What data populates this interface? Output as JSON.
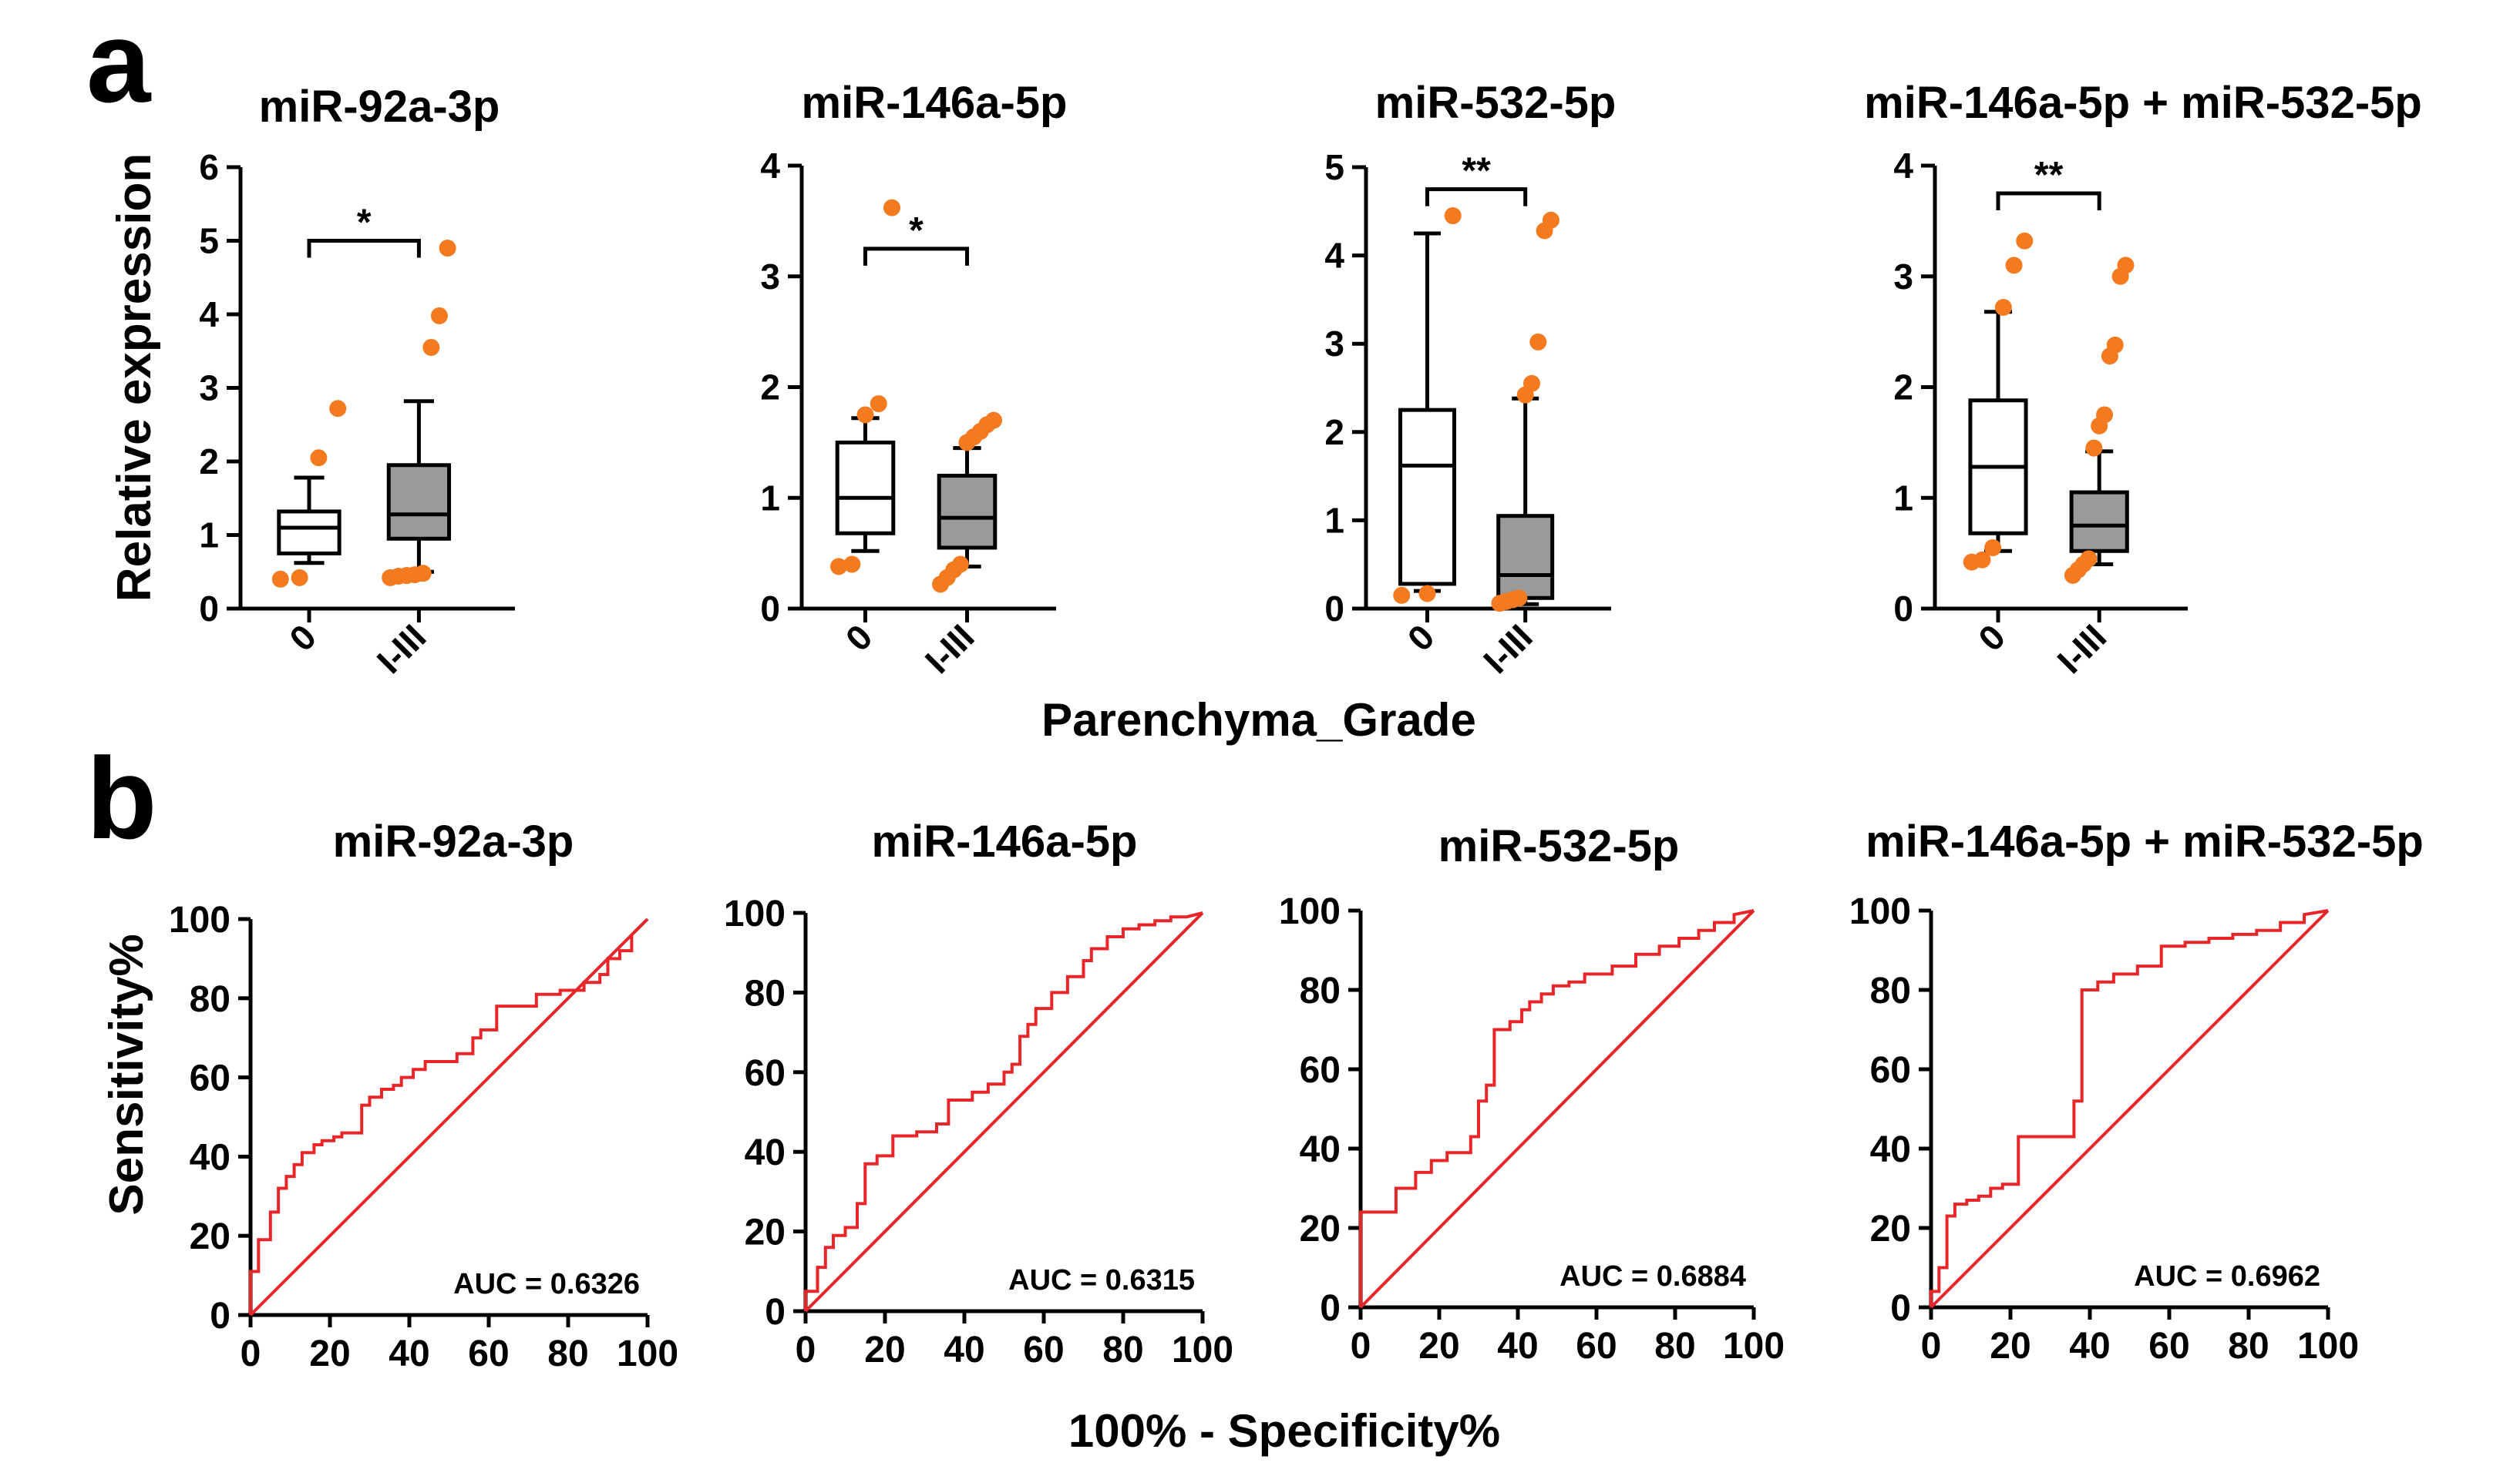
{
  "panel_labels": {
    "a": "a",
    "b": "b"
  },
  "colors": {
    "dot": "#f47a20",
    "box_group2": "#9a9a9a",
    "roc": "#e8262a",
    "diag": "#e8262a",
    "axis": "#000000"
  },
  "chart_data": [
    {
      "type": "box",
      "panel": "a",
      "title": "miR-92a-3p",
      "ylabel": "Relative expression",
      "xlabel": "Parenchyma_Grade",
      "ylim": [
        0,
        6
      ],
      "yticks": [
        "0",
        "1",
        "2",
        "3",
        "4",
        "5",
        "6"
      ],
      "categories": [
        "0",
        "I-III"
      ],
      "boxes": [
        {
          "q1": 0.75,
          "median": 1.1,
          "q3": 1.32,
          "whisker_low": 0.62,
          "whisker_high": 1.78,
          "outliers": [
            0.4,
            0.42,
            2.05,
            2.72
          ]
        },
        {
          "q1": 0.95,
          "median": 1.28,
          "q3": 1.95,
          "whisker_low": 0.5,
          "whisker_high": 2.82,
          "outliers": [
            0.42,
            0.44,
            0.45,
            0.46,
            0.48,
            3.55,
            3.98,
            4.9
          ]
        }
      ],
      "significance": {
        "label": "*",
        "y": 5.0
      }
    },
    {
      "type": "box",
      "panel": "a",
      "title": "miR-146a-5p",
      "ylim": [
        0,
        4
      ],
      "yticks": [
        "0",
        "1",
        "2",
        "3",
        "4"
      ],
      "categories": [
        "0",
        "I-III"
      ],
      "boxes": [
        {
          "q1": 0.68,
          "median": 1.0,
          "q3": 1.5,
          "whisker_low": 0.52,
          "whisker_high": 1.72,
          "outliers": [
            0.38,
            0.4,
            1.75,
            1.85,
            3.62
          ]
        },
        {
          "q1": 0.55,
          "median": 0.82,
          "q3": 1.2,
          "whisker_low": 0.38,
          "whisker_high": 1.45,
          "outliers": [
            0.22,
            0.28,
            0.35,
            0.4,
            1.5,
            1.55,
            1.6,
            1.66,
            1.7
          ]
        }
      ],
      "significance": {
        "label": "*",
        "y": 3.25
      }
    },
    {
      "type": "box",
      "panel": "a",
      "title": "miR-532-5p",
      "ylim": [
        0,
        5
      ],
      "yticks": [
        "0",
        "1",
        "2",
        "3",
        "4",
        "5"
      ],
      "categories": [
        "0",
        "I-III"
      ],
      "boxes": [
        {
          "q1": 0.28,
          "median": 1.62,
          "q3": 2.25,
          "whisker_low": 0.2,
          "whisker_high": 4.25,
          "outliers": [
            0.15,
            0.17,
            4.45
          ]
        },
        {
          "q1": 0.12,
          "median": 0.38,
          "q3": 1.05,
          "whisker_low": 0.05,
          "whisker_high": 2.38,
          "outliers": [
            0.06,
            0.08,
            0.1,
            0.12,
            2.42,
            2.55,
            3.02,
            4.28,
            4.4
          ]
        }
      ],
      "significance": {
        "label": "**",
        "y": 4.75
      }
    },
    {
      "type": "box",
      "panel": "a",
      "title": "miR-146a-5p + miR-532-5p",
      "ylim": [
        0,
        4
      ],
      "yticks": [
        "0",
        "1",
        "2",
        "3",
        "4"
      ],
      "categories": [
        "0",
        "I-III"
      ],
      "boxes": [
        {
          "q1": 0.68,
          "median": 1.28,
          "q3": 1.88,
          "whisker_low": 0.52,
          "whisker_high": 2.68,
          "outliers": [
            0.42,
            0.44,
            0.55,
            2.72,
            3.1,
            3.32
          ]
        },
        {
          "q1": 0.52,
          "median": 0.75,
          "q3": 1.05,
          "whisker_low": 0.4,
          "whisker_high": 1.42,
          "outliers": [
            0.3,
            0.35,
            0.4,
            0.45,
            1.45,
            1.65,
            1.75,
            2.28,
            2.38,
            3.0,
            3.1
          ]
        }
      ],
      "significance": {
        "label": "**",
        "y": 3.75
      }
    },
    {
      "type": "line",
      "panel": "b",
      "title": "miR-92a-3p",
      "ylabel": "Sensitivity%",
      "xlabel": "100% - Specificity%",
      "xlim": [
        0,
        100
      ],
      "ylim": [
        0,
        100
      ],
      "xticks": [
        "0",
        "20",
        "40",
        "60",
        "80",
        "100"
      ],
      "yticks": [
        "0",
        "20",
        "40",
        "60",
        "80",
        "100"
      ],
      "auc_label": "AUC = 0.6326",
      "x": [
        0,
        0,
        2,
        2,
        5,
        5,
        7,
        7,
        9,
        9,
        11,
        11,
        13,
        13,
        16,
        16,
        18,
        18,
        21,
        21,
        23,
        23,
        28,
        28,
        30,
        30,
        33,
        33,
        36,
        36,
        38,
        38,
        41,
        41,
        44,
        44,
        52,
        52,
        56,
        56,
        58,
        58,
        62,
        62,
        72,
        72,
        78,
        78,
        84,
        84,
        88,
        88,
        90,
        90,
        93,
        93,
        96,
        96,
        100
      ],
      "y": [
        0,
        11,
        11,
        19,
        19,
        26,
        26,
        32,
        32,
        35,
        35,
        38,
        38,
        41,
        41,
        43,
        43,
        44,
        44,
        45,
        45,
        46,
        46,
        53,
        53,
        55,
        55,
        57,
        57,
        58,
        58,
        60,
        60,
        62,
        62,
        64,
        64,
        66,
        66,
        70,
        70,
        72,
        72,
        78,
        78,
        81,
        81,
        82,
        82,
        84,
        84,
        86,
        86,
        90,
        90,
        92,
        92,
        96,
        100
      ]
    },
    {
      "type": "line",
      "panel": "b",
      "title": "miR-146a-5p",
      "xlim": [
        0,
        100
      ],
      "ylim": [
        0,
        100
      ],
      "xticks": [
        "0",
        "20",
        "40",
        "60",
        "80",
        "100"
      ],
      "yticks": [
        "0",
        "20",
        "40",
        "60",
        "80",
        "100"
      ],
      "auc_label": "AUC = 0.6315",
      "x": [
        0,
        0,
        3,
        3,
        5,
        5,
        7,
        7,
        10,
        10,
        13,
        13,
        15,
        15,
        18,
        18,
        22,
        22,
        28,
        28,
        33,
        33,
        36,
        36,
        42,
        42,
        46,
        46,
        50,
        50,
        52,
        52,
        54,
        54,
        56,
        56,
        58,
        58,
        62,
        62,
        66,
        66,
        70,
        70,
        72,
        72,
        76,
        76,
        80,
        80,
        84,
        84,
        88,
        88,
        92,
        92,
        96,
        100
      ],
      "y": [
        0,
        5,
        5,
        11,
        11,
        16,
        16,
        19,
        19,
        21,
        21,
        27,
        27,
        37,
        37,
        39,
        39,
        44,
        44,
        45,
        45,
        47,
        47,
        53,
        53,
        55,
        55,
        57,
        57,
        60,
        60,
        62,
        62,
        69,
        69,
        72,
        72,
        76,
        76,
        80,
        80,
        84,
        84,
        88,
        88,
        91,
        91,
        94,
        94,
        96,
        96,
        97,
        97,
        98,
        98,
        99,
        99,
        100
      ]
    },
    {
      "type": "line",
      "panel": "b",
      "title": "miR-532-5p",
      "xlim": [
        0,
        100
      ],
      "ylim": [
        0,
        100
      ],
      "xticks": [
        "0",
        "20",
        "40",
        "60",
        "80",
        "100"
      ],
      "yticks": [
        "0",
        "20",
        "40",
        "60",
        "80",
        "100"
      ],
      "auc_label": "AUC = 0.6884",
      "x": [
        0,
        0,
        9,
        9,
        14,
        14,
        18,
        18,
        22,
        22,
        28,
        28,
        30,
        30,
        32,
        32,
        34,
        34,
        38,
        38,
        41,
        41,
        43,
        43,
        46,
        46,
        49,
        49,
        53,
        53,
        57,
        57,
        64,
        64,
        70,
        70,
        76,
        76,
        81,
        81,
        86,
        86,
        90,
        90,
        95,
        95,
        100
      ],
      "y": [
        0,
        24,
        24,
        30,
        30,
        34,
        34,
        37,
        37,
        39,
        39,
        43,
        43,
        52,
        52,
        56,
        56,
        70,
        70,
        72,
        72,
        75,
        75,
        77,
        77,
        79,
        79,
        81,
        81,
        82,
        82,
        84,
        84,
        86,
        86,
        89,
        89,
        91,
        91,
        93,
        93,
        95,
        95,
        97,
        97,
        99,
        100
      ]
    },
    {
      "type": "line",
      "panel": "b",
      "title": "miR-146a-5p + miR-532-5p",
      "xlim": [
        0,
        100
      ],
      "ylim": [
        0,
        100
      ],
      "xticks": [
        "0",
        "20",
        "40",
        "60",
        "80",
        "100"
      ],
      "yticks": [
        "0",
        "20",
        "40",
        "60",
        "80",
        "100"
      ],
      "auc_label": "AUC = 0.6962",
      "x": [
        0,
        0,
        2,
        2,
        4,
        4,
        6,
        6,
        9,
        9,
        12,
        12,
        15,
        15,
        18,
        18,
        22,
        22,
        30,
        30,
        36,
        36,
        38,
        38,
        42,
        42,
        46,
        46,
        52,
        52,
        58,
        58,
        64,
        64,
        70,
        70,
        76,
        76,
        82,
        82,
        88,
        88,
        94,
        94,
        100
      ],
      "y": [
        0,
        4,
        4,
        10,
        10,
        23,
        23,
        26,
        26,
        27,
        27,
        28,
        28,
        30,
        30,
        31,
        31,
        43,
        43,
        43,
        43,
        52,
        52,
        80,
        80,
        82,
        82,
        84,
        84,
        86,
        86,
        91,
        91,
        92,
        92,
        93,
        93,
        94,
        94,
        95,
        95,
        97,
        97,
        99,
        100
      ]
    }
  ]
}
